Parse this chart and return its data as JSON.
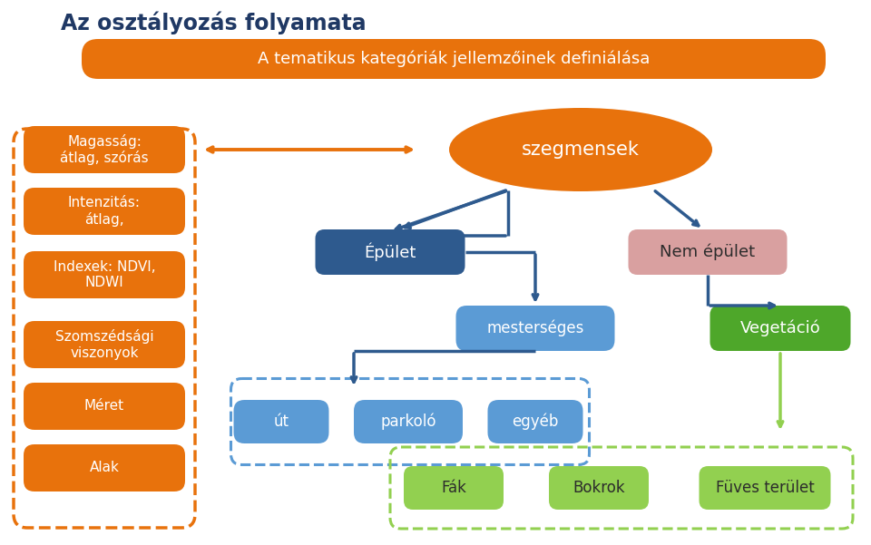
{
  "title": "Az osztályozás folyamata",
  "subtitle": "A tematikus kategóriák jellemzőinek definiálása",
  "colors": {
    "orange": "#E8720C",
    "orange_border": "#C86000",
    "dark_blue": "#1F3864",
    "steel_blue": "#2E5A8E",
    "medium_blue": "#5B9BD5",
    "pink": "#D9A0A0",
    "green": "#4EA72A",
    "light_green": "#92D050",
    "white": "#FFFFFF",
    "bg": "#FFFFFF"
  },
  "background": "#FFFFFF",
  "left_items": [
    "Magasság:\nátlag, szórás",
    "Intenzitás:\nátlag,",
    "Indexek: NDVI,\nNDWI",
    "Szomszédsági\nviszonyok",
    "Méret",
    "Alak"
  ]
}
